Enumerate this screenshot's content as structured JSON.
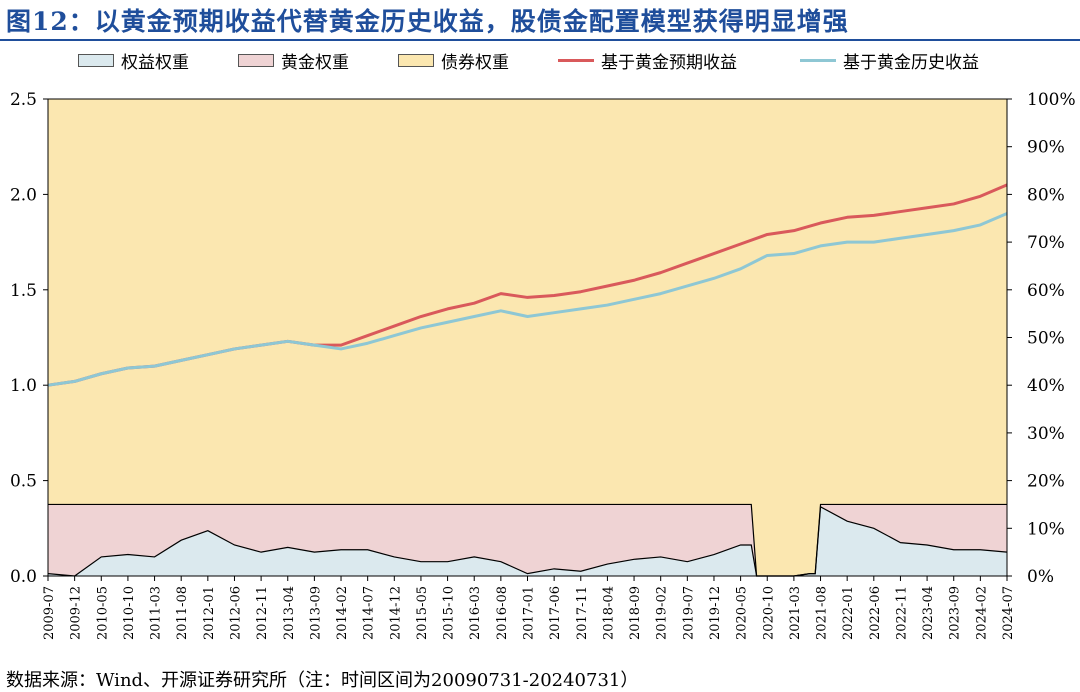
{
  "title": "图12：以黄金预期收益代替黄金历史收益，股债金配置模型获得明显增强",
  "source": "数据来源：Wind、开源证券研究所（注：时间区间为20090731-20240731）",
  "colors": {
    "title": "#1f4e9b",
    "equity_weight": "#dbe9ee",
    "gold_weight": "#efd3d4",
    "bond_weight": "#fbe7b0",
    "expected_line": "#d9595b",
    "historical_line": "#8ec7d4"
  },
  "chart_data": {
    "type": "area",
    "left_axis": {
      "ylim": [
        0,
        2.5
      ],
      "ticks": [
        "0.0",
        "0.5",
        "1.0",
        "1.5",
        "2.0",
        "2.5"
      ]
    },
    "right_axis": {
      "ylim": [
        0,
        100
      ],
      "ticks": [
        "0%",
        "10%",
        "20%",
        "30%",
        "40%",
        "50%",
        "60%",
        "70%",
        "80%",
        "90%",
        "100%"
      ]
    },
    "x_ticks": [
      "2009-07",
      "2009-12",
      "2010-05",
      "2010-10",
      "2011-03",
      "2011-08",
      "2012-01",
      "2012-06",
      "2012-11",
      "2013-04",
      "2013-09",
      "2014-02",
      "2014-07",
      "2014-12",
      "2015-05",
      "2015-10",
      "2016-03",
      "2016-08",
      "2017-01",
      "2017-06",
      "2017-11",
      "2018-04",
      "2018-09",
      "2019-02",
      "2019-07",
      "2019-12",
      "2020-05",
      "2020-10",
      "2021-03",
      "2021-08",
      "2022-01",
      "2022-06",
      "2022-11",
      "2023-04",
      "2023-09",
      "2024-02",
      "2024-07"
    ],
    "legend": [
      "权益权重",
      "黄金权重",
      "债券权重",
      "基于黄金预期收益",
      "基于黄金历史收益"
    ],
    "stacked_weights": {
      "x": [
        "2009-07",
        "2009-12",
        "2010-05",
        "2010-10",
        "2011-03",
        "2011-08",
        "2012-01",
        "2012-06",
        "2012-11",
        "2013-04",
        "2013-09",
        "2014-02",
        "2014-07",
        "2014-12",
        "2015-05",
        "2015-10",
        "2016-03",
        "2016-08",
        "2017-01",
        "2017-06",
        "2017-11",
        "2018-04",
        "2018-09",
        "2019-02",
        "2019-07",
        "2019-12",
        "2020-05",
        "2020-07",
        "2020-08",
        "2020-10",
        "2021-03",
        "2021-06",
        "2021-07",
        "2021-08",
        "2022-01",
        "2022-06",
        "2022-11",
        "2023-04",
        "2023-09",
        "2024-02",
        "2024-07"
      ],
      "equity_weight_pct": [
        0.5,
        0,
        4,
        4.5,
        4,
        7.5,
        9.5,
        6.5,
        5,
        6,
        5,
        5.5,
        5.5,
        4,
        3,
        3,
        4,
        3,
        0.5,
        1.5,
        1,
        2.5,
        3.5,
        4,
        3,
        4.5,
        6.5,
        6.5,
        0,
        0,
        0,
        0.5,
        0.5,
        14.5,
        11.5,
        10,
        7,
        6.5,
        5.5,
        5.5,
        5
      ],
      "equity_plus_gold_pct": [
        15,
        15,
        15,
        15,
        15,
        15,
        15,
        15,
        15,
        15,
        15,
        15,
        15,
        15,
        15,
        15,
        15,
        15,
        15,
        15,
        15,
        15,
        15,
        15,
        15,
        15,
        15,
        15,
        0,
        0,
        0,
        0.5,
        0.5,
        15,
        15,
        15,
        15,
        15,
        15,
        15,
        15
      ]
    },
    "series": [
      {
        "name": "基于黄金预期收益",
        "x": [
          "2009-07",
          "2009-12",
          "2010-05",
          "2010-10",
          "2011-03",
          "2011-08",
          "2012-01",
          "2012-06",
          "2012-11",
          "2013-04",
          "2013-09",
          "2014-02",
          "2014-07",
          "2014-12",
          "2015-05",
          "2015-10",
          "2016-03",
          "2016-08",
          "2017-01",
          "2017-06",
          "2017-11",
          "2018-04",
          "2018-09",
          "2019-02",
          "2019-07",
          "2019-12",
          "2020-05",
          "2020-10",
          "2021-03",
          "2021-08",
          "2022-01",
          "2022-06",
          "2022-11",
          "2023-04",
          "2023-09",
          "2024-02",
          "2024-07"
        ],
        "values": [
          1.0,
          1.02,
          1.06,
          1.09,
          1.1,
          1.13,
          1.16,
          1.19,
          1.21,
          1.23,
          1.21,
          1.21,
          1.26,
          1.31,
          1.36,
          1.4,
          1.43,
          1.48,
          1.46,
          1.47,
          1.49,
          1.52,
          1.55,
          1.59,
          1.64,
          1.69,
          1.74,
          1.79,
          1.81,
          1.85,
          1.88,
          1.89,
          1.91,
          1.93,
          1.95,
          1.99,
          2.05
        ]
      },
      {
        "name": "基于黄金历史收益",
        "x": [
          "2009-07",
          "2009-12",
          "2010-05",
          "2010-10",
          "2011-03",
          "2011-08",
          "2012-01",
          "2012-06",
          "2012-11",
          "2013-04",
          "2013-09",
          "2014-02",
          "2014-07",
          "2014-12",
          "2015-05",
          "2015-10",
          "2016-03",
          "2016-08",
          "2017-01",
          "2017-06",
          "2017-11",
          "2018-04",
          "2018-09",
          "2019-02",
          "2019-07",
          "2019-12",
          "2020-05",
          "2020-10",
          "2021-03",
          "2021-08",
          "2022-01",
          "2022-06",
          "2022-11",
          "2023-04",
          "2023-09",
          "2024-02",
          "2024-07"
        ],
        "values": [
          1.0,
          1.02,
          1.06,
          1.09,
          1.1,
          1.13,
          1.16,
          1.19,
          1.21,
          1.23,
          1.21,
          1.19,
          1.22,
          1.26,
          1.3,
          1.33,
          1.36,
          1.39,
          1.36,
          1.38,
          1.4,
          1.42,
          1.45,
          1.48,
          1.52,
          1.56,
          1.61,
          1.68,
          1.69,
          1.73,
          1.75,
          1.75,
          1.77,
          1.79,
          1.81,
          1.84,
          1.9
        ]
      }
    ]
  }
}
